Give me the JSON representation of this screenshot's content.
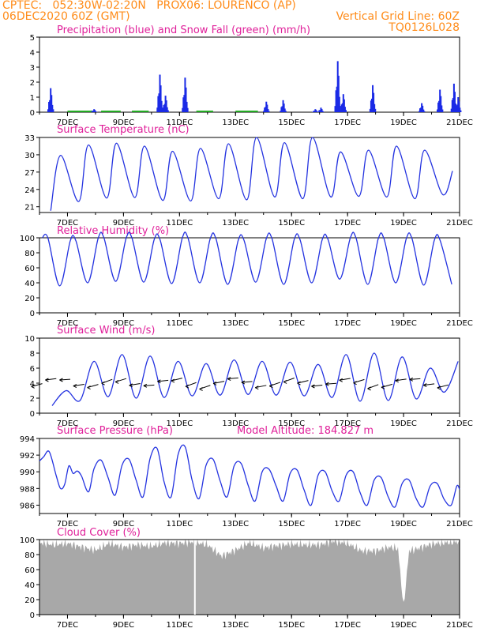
{
  "header": {
    "line1_left": "CPTEC:   052:30W-02:20N   PROX06: LOURENCO (AP)",
    "line2_left": "06DEC2020 60Z (GMT)",
    "line2_right": "Vertical Grid Line: 60Z",
    "line3_right": "TQ0126L028"
  },
  "colors": {
    "header": "#ff8c1a",
    "title": "#e0209a",
    "line": "#2433e0",
    "precip": "#1a2ae6",
    "snow": "#22aa22",
    "cloud": "#a8a8a8",
    "wind_arrow": "#000000"
  },
  "x_axis": {
    "start_day": 6,
    "end_day": 21,
    "tick_labels": [
      "7DEC",
      "9DEC",
      "11DEC",
      "13DEC",
      "15DEC",
      "17DEC",
      "19DEC",
      "21DEC"
    ]
  },
  "chart_data": [
    {
      "id": "precip",
      "type": "bar",
      "title": "Precipitation (blue) and Snow Fall (green) (mm/h)",
      "ylim": [
        0,
        5
      ],
      "yticks": [
        "0",
        "1",
        "2",
        "3",
        "4",
        "5"
      ],
      "events": [
        [
          6.4,
          1.6
        ],
        [
          7.95,
          0.2
        ],
        [
          10.3,
          2.5
        ],
        [
          10.5,
          1.1
        ],
        [
          11.2,
          2.3
        ],
        [
          14.1,
          0.7
        ],
        [
          14.7,
          0.8
        ],
        [
          15.85,
          0.2
        ],
        [
          16.05,
          0.3
        ],
        [
          16.65,
          3.4
        ],
        [
          16.85,
          1.2
        ],
        [
          17.9,
          1.8
        ],
        [
          19.65,
          0.6
        ],
        [
          20.3,
          1.5
        ],
        [
          20.8,
          1.9
        ],
        [
          20.95,
          1.0
        ]
      ]
    },
    {
      "id": "temp",
      "type": "line",
      "title": "Surface Temperature (nC)",
      "ylim": [
        20,
        33
      ],
      "yticks": [
        "21",
        "24",
        "27",
        "30",
        "33"
      ],
      "min": [
        20.3,
        21.9,
        22.5,
        22.6,
        22.1,
        22.0,
        22.4,
        22.2,
        22.7,
        22.4,
        22.7,
        22.8,
        22.7,
        22.4,
        23.1,
        24.3
      ],
      "max": [
        29.9,
        31.7,
        32.0,
        31.5,
        30.6,
        31.1,
        31.9,
        33.0,
        32.1,
        33.0,
        30.5,
        30.8,
        31.5,
        30.8,
        27.2
      ],
      "grid_labels": []
    },
    {
      "id": "rh",
      "type": "line",
      "title": "Relative Humidity (%)",
      "ylim": [
        0,
        100
      ],
      "yticks": [
        "0",
        "20",
        "40",
        "60",
        "80",
        "100"
      ],
      "max": [
        100,
        96,
        100,
        100,
        98,
        100,
        99,
        97,
        99,
        98,
        98,
        100,
        99,
        99,
        97,
        82
      ],
      "min": [
        36,
        40,
        42,
        41,
        39,
        40,
        38,
        41,
        38,
        40,
        45,
        38,
        40,
        37,
        38
      ]
    },
    {
      "id": "wind",
      "type": "line",
      "title": "Surface Wind (m/s)",
      "ylim": [
        0,
        10
      ],
      "yticks": [
        "0",
        "2",
        "4",
        "6",
        "8",
        "10"
      ],
      "max": [
        3.0,
        6.9,
        7.8,
        7.6,
        6.9,
        6.6,
        7.1,
        6.9,
        6.8,
        6.5,
        7.8,
        8.0,
        7.5,
        6.0,
        6.9
      ],
      "min": [
        1.0,
        1.7,
        2.2,
        2.0,
        2.1,
        2.3,
        2.4,
        2.5,
        2.4,
        2.3,
        2.1,
        1.6,
        1.7,
        1.9,
        2.8
      ]
    },
    {
      "id": "press",
      "type": "line",
      "title": "Surface Pressure (hPa)",
      "subtitle": "Model Altitude: 184.827 m",
      "ylim": [
        985,
        994
      ],
      "yticks": [
        "986",
        "988",
        "990",
        "992",
        "994"
      ],
      "points": [
        [
          6.0,
          991.3
        ],
        [
          6.15,
          991.8
        ],
        [
          6.35,
          992.4
        ],
        [
          6.6,
          989.5
        ],
        [
          6.75,
          988.0
        ],
        [
          6.9,
          988.5
        ],
        [
          7.05,
          990.7
        ],
        [
          7.2,
          989.8
        ],
        [
          7.35,
          990.1
        ],
        [
          7.5,
          989.5
        ],
        [
          7.75,
          987.6
        ],
        [
          7.95,
          990.4
        ],
        [
          8.2,
          991.4
        ],
        [
          8.45,
          989.3
        ],
        [
          8.7,
          987.2
        ],
        [
          8.95,
          990.8
        ],
        [
          9.2,
          991.5
        ],
        [
          9.45,
          989.0
        ],
        [
          9.7,
          987.0
        ],
        [
          9.95,
          991.6
        ],
        [
          10.2,
          992.8
        ],
        [
          10.45,
          988.8
        ],
        [
          10.7,
          987.0
        ],
        [
          10.95,
          992.1
        ],
        [
          11.2,
          993.0
        ],
        [
          11.45,
          989.0
        ],
        [
          11.7,
          986.8
        ],
        [
          11.95,
          990.8
        ],
        [
          12.2,
          991.5
        ],
        [
          12.45,
          988.9
        ],
        [
          12.7,
          987.0
        ],
        [
          12.95,
          990.7
        ],
        [
          13.2,
          991.0
        ],
        [
          13.45,
          988.4
        ],
        [
          13.7,
          986.5
        ],
        [
          13.95,
          990.0
        ],
        [
          14.2,
          990.3
        ],
        [
          14.45,
          988.3
        ],
        [
          14.7,
          986.5
        ],
        [
          14.95,
          989.8
        ],
        [
          15.2,
          990.2
        ],
        [
          15.45,
          987.8
        ],
        [
          15.7,
          986.0
        ],
        [
          15.95,
          989.6
        ],
        [
          16.2,
          990.0
        ],
        [
          16.45,
          987.7
        ],
        [
          16.7,
          986.5
        ],
        [
          16.95,
          989.6
        ],
        [
          17.2,
          990.0
        ],
        [
          17.45,
          987.5
        ],
        [
          17.7,
          986.0
        ],
        [
          17.95,
          989.0
        ],
        [
          18.2,
          989.3
        ],
        [
          18.45,
          987.0
        ],
        [
          18.7,
          985.8
        ],
        [
          18.95,
          988.6
        ],
        [
          19.2,
          989.0
        ],
        [
          19.45,
          986.8
        ],
        [
          19.7,
          985.8
        ],
        [
          19.95,
          988.3
        ],
        [
          20.2,
          988.6
        ],
        [
          20.45,
          986.7
        ],
        [
          20.7,
          986.0
        ],
        [
          20.9,
          988.3
        ],
        [
          21.0,
          987.9
        ]
      ]
    },
    {
      "id": "cloud",
      "type": "area",
      "title": "Cloud Cover (%)",
      "ylim": [
        0,
        100
      ],
      "yticks": [
        "0",
        "20",
        "40",
        "60",
        "80",
        "100"
      ],
      "points": [
        [
          6.0,
          96
        ],
        [
          6.5,
          93
        ],
        [
          7.0,
          95
        ],
        [
          7.5,
          90
        ],
        [
          8.0,
          86
        ],
        [
          8.5,
          95
        ],
        [
          9.0,
          90
        ],
        [
          9.5,
          93
        ],
        [
          10.0,
          91
        ],
        [
          10.5,
          96
        ],
        [
          11.0,
          95
        ],
        [
          11.5,
          97
        ],
        [
          12.0,
          93
        ],
        [
          12.5,
          78
        ],
        [
          13.0,
          86
        ],
        [
          13.5,
          96
        ],
        [
          14.0,
          89
        ],
        [
          14.5,
          92
        ],
        [
          15.0,
          94
        ],
        [
          15.5,
          93
        ],
        [
          16.0,
          93
        ],
        [
          16.5,
          98
        ],
        [
          17.0,
          95
        ],
        [
          17.5,
          85
        ],
        [
          18.0,
          85
        ],
        [
          18.5,
          90
        ],
        [
          18.8,
          88
        ],
        [
          19.0,
          10
        ],
        [
          19.2,
          85
        ],
        [
          19.5,
          88
        ],
        [
          20.0,
          94
        ],
        [
          20.5,
          96
        ],
        [
          21.0,
          97
        ]
      ]
    }
  ]
}
